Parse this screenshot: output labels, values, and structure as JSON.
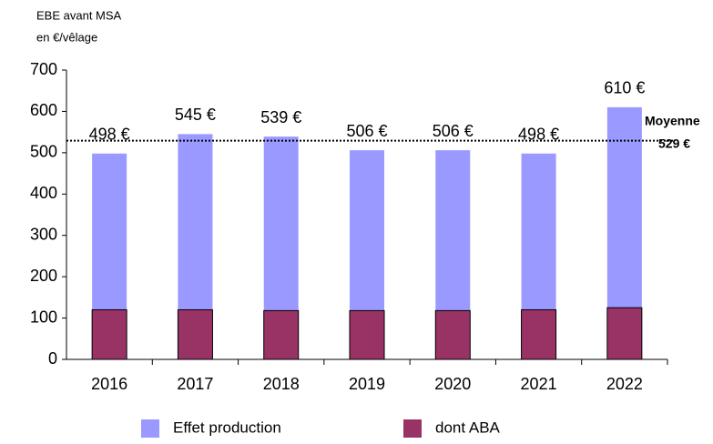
{
  "chart_data": {
    "type": "bar",
    "y_label": [
      "EBE avant MSA",
      "en €/vêlage"
    ],
    "categories": [
      "2016",
      "2017",
      "2018",
      "2019",
      "2020",
      "2021",
      "2022"
    ],
    "series": [
      {
        "name": "Effet production",
        "color": "#9999ff",
        "values": [
          498,
          545,
          539,
          506,
          506,
          498,
          610
        ],
        "value_labels": [
          "498 €",
          "545 €",
          "539 €",
          "506 €",
          "506 €",
          "498 €",
          "610 €"
        ]
      },
      {
        "name": "dont ABA",
        "color": "#993366",
        "values": [
          120,
          120,
          118,
          118,
          118,
          120,
          125
        ]
      }
    ],
    "mean": {
      "value": 529,
      "label": "Moyenne",
      "value_label": "529 €"
    },
    "ylim": [
      0,
      700
    ],
    "yticks": [
      0,
      100,
      200,
      300,
      400,
      500,
      600,
      700
    ]
  }
}
